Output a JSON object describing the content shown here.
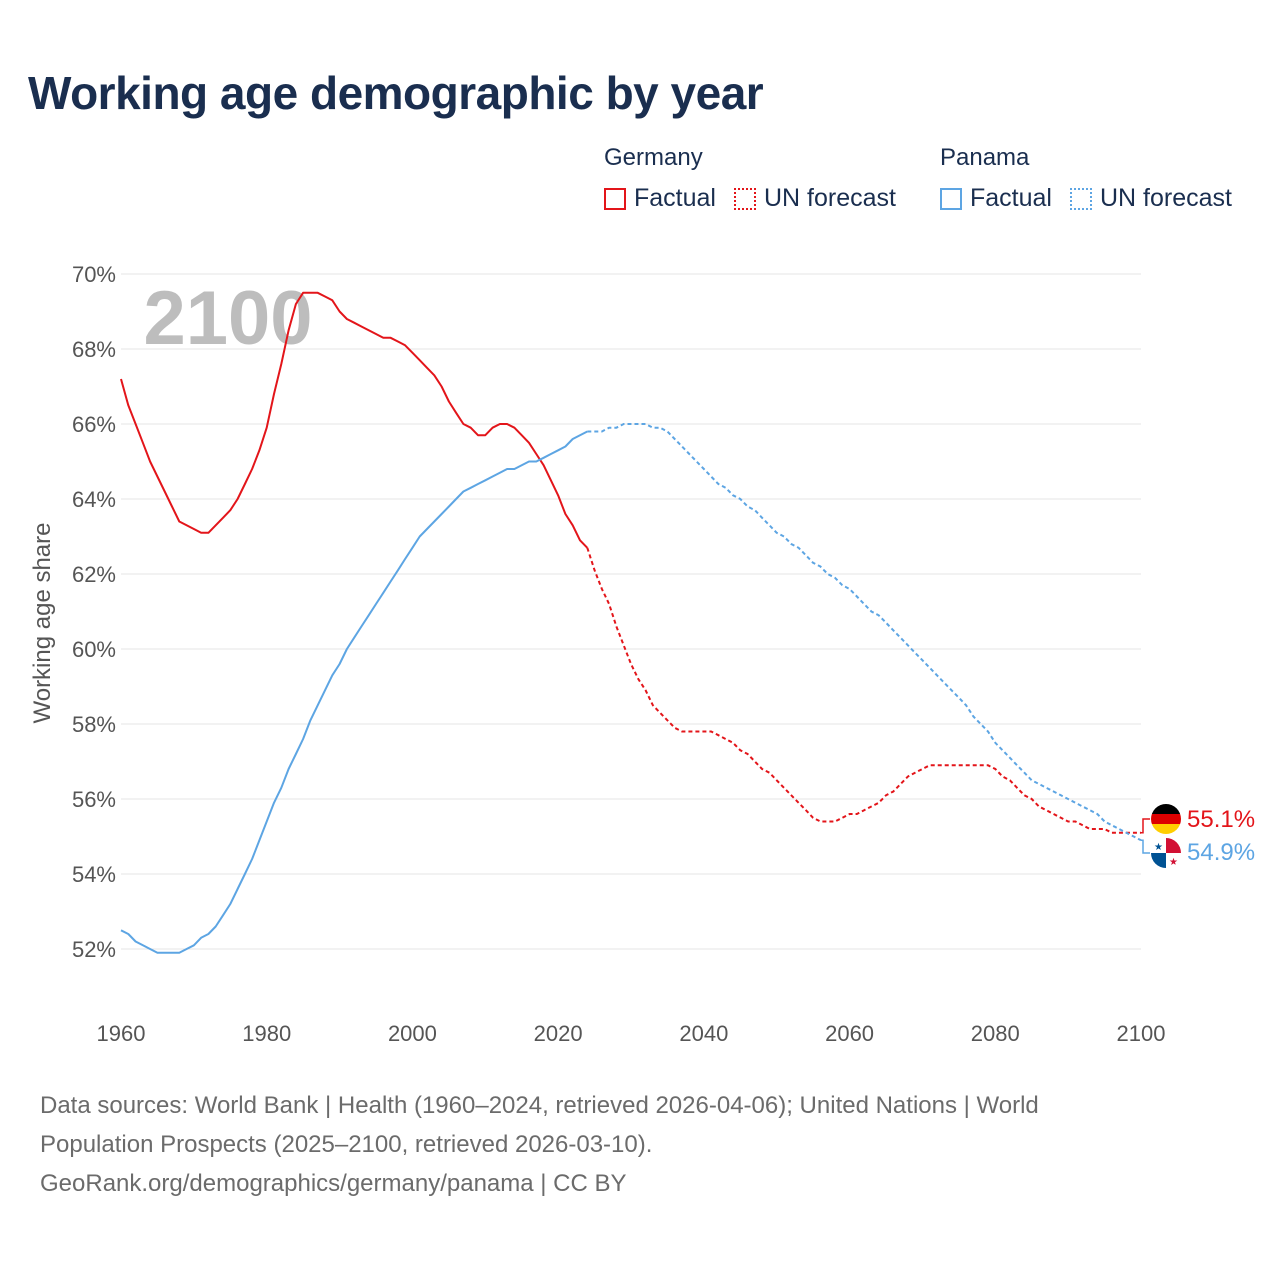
{
  "title": "Working age demographic by year",
  "legend": {
    "groups": [
      {
        "name": "Germany",
        "factual_label": "Factual",
        "forecast_label": "UN forecast",
        "color": "#e3151a"
      },
      {
        "name": "Panama",
        "factual_label": "Factual",
        "forecast_label": "UN forecast",
        "color": "#5da5e3"
      }
    ]
  },
  "footer": {
    "line1": "Data sources: World Bank | Health (1960–2024, retrieved 2026-04-06); United Nations | World",
    "line2": "Population Prospects (2025–2100, retrieved 2026-03-10).",
    "line3": "GeoRank.org/demographics/germany/panama | CC BY"
  },
  "chart_data": {
    "type": "line",
    "title": "Working age demographic by year",
    "xlabel": "",
    "ylabel": "Working age share",
    "xlim": [
      1960,
      2100
    ],
    "ylim": [
      51,
      70
    ],
    "x_ticks": [
      1960,
      1980,
      2000,
      2020,
      2040,
      2060,
      2080,
      2100
    ],
    "x_tick_labels": [
      "1960",
      "1980",
      "2000",
      "2020",
      "2040",
      "2060",
      "2080",
      "2100"
    ],
    "y_ticks": [
      52,
      54,
      56,
      58,
      60,
      62,
      64,
      66,
      68,
      70
    ],
    "y_tick_labels": [
      "52%",
      "54%",
      "56%",
      "58%",
      "60%",
      "62%",
      "64%",
      "66%",
      "68%",
      "70%"
    ],
    "year_watermark": "2100",
    "factual_end": 2024,
    "series": [
      {
        "name": "Germany",
        "color": "#e3151a",
        "end_label": "55.1%",
        "x": [
          1960,
          1961,
          1962,
          1963,
          1964,
          1965,
          1966,
          1967,
          1968,
          1969,
          1970,
          1971,
          1972,
          1973,
          1974,
          1975,
          1976,
          1977,
          1978,
          1979,
          1980,
          1981,
          1982,
          1983,
          1984,
          1985,
          1986,
          1987,
          1988,
          1989,
          1990,
          1991,
          1992,
          1993,
          1994,
          1995,
          1996,
          1997,
          1998,
          1999,
          2000,
          2001,
          2002,
          2003,
          2004,
          2005,
          2006,
          2007,
          2008,
          2009,
          2010,
          2011,
          2012,
          2013,
          2014,
          2015,
          2016,
          2017,
          2018,
          2019,
          2020,
          2021,
          2022,
          2023,
          2024,
          2025,
          2026,
          2027,
          2028,
          2029,
          2030,
          2031,
          2032,
          2033,
          2034,
          2035,
          2036,
          2037,
          2038,
          2039,
          2040,
          2041,
          2042,
          2043,
          2044,
          2045,
          2046,
          2047,
          2048,
          2049,
          2050,
          2051,
          2052,
          2053,
          2054,
          2055,
          2056,
          2057,
          2058,
          2059,
          2060,
          2061,
          2062,
          2063,
          2064,
          2065,
          2066,
          2067,
          2068,
          2069,
          2070,
          2071,
          2072,
          2073,
          2074,
          2075,
          2076,
          2077,
          2078,
          2079,
          2080,
          2081,
          2082,
          2083,
          2084,
          2085,
          2086,
          2087,
          2088,
          2089,
          2090,
          2091,
          2092,
          2093,
          2094,
          2095,
          2096,
          2097,
          2098,
          2099,
          2100
        ],
        "values": [
          67.2,
          66.5,
          66.0,
          65.5,
          65.0,
          64.6,
          64.2,
          63.8,
          63.4,
          63.3,
          63.2,
          63.1,
          63.1,
          63.3,
          63.5,
          63.7,
          64.0,
          64.4,
          64.8,
          65.3,
          65.9,
          66.8,
          67.6,
          68.5,
          69.2,
          69.5,
          69.5,
          69.5,
          69.4,
          69.3,
          69.0,
          68.8,
          68.7,
          68.6,
          68.5,
          68.4,
          68.3,
          68.3,
          68.2,
          68.1,
          67.9,
          67.7,
          67.5,
          67.3,
          67.0,
          66.6,
          66.3,
          66.0,
          65.9,
          65.7,
          65.7,
          65.9,
          66.0,
          66.0,
          65.9,
          65.7,
          65.5,
          65.2,
          64.9,
          64.5,
          64.1,
          63.6,
          63.3,
          62.9,
          62.7,
          62.1,
          61.6,
          61.2,
          60.6,
          60.1,
          59.6,
          59.2,
          58.9,
          58.5,
          58.3,
          58.1,
          57.9,
          57.8,
          57.8,
          57.8,
          57.8,
          57.8,
          57.7,
          57.6,
          57.5,
          57.3,
          57.2,
          57.0,
          56.8,
          56.7,
          56.5,
          56.3,
          56.1,
          55.9,
          55.7,
          55.5,
          55.4,
          55.4,
          55.4,
          55.5,
          55.6,
          55.6,
          55.7,
          55.8,
          55.9,
          56.1,
          56.2,
          56.4,
          56.6,
          56.7,
          56.8,
          56.9,
          56.9,
          56.9,
          56.9,
          56.9,
          56.9,
          56.9,
          56.9,
          56.9,
          56.8,
          56.6,
          56.5,
          56.3,
          56.1,
          56.0,
          55.8,
          55.7,
          55.6,
          55.5,
          55.4,
          55.4,
          55.3,
          55.2,
          55.2,
          55.2,
          55.1,
          55.1,
          55.1,
          55.1,
          55.1
        ]
      },
      {
        "name": "Panama",
        "color": "#5da5e3",
        "end_label": "54.9%",
        "x": [
          1960,
          1961,
          1962,
          1963,
          1964,
          1965,
          1966,
          1967,
          1968,
          1969,
          1970,
          1971,
          1972,
          1973,
          1974,
          1975,
          1976,
          1977,
          1978,
          1979,
          1980,
          1981,
          1982,
          1983,
          1984,
          1985,
          1986,
          1987,
          1988,
          1989,
          1990,
          1991,
          1992,
          1993,
          1994,
          1995,
          1996,
          1997,
          1998,
          1999,
          2000,
          2001,
          2002,
          2003,
          2004,
          2005,
          2006,
          2007,
          2008,
          2009,
          2010,
          2011,
          2012,
          2013,
          2014,
          2015,
          2016,
          2017,
          2018,
          2019,
          2020,
          2021,
          2022,
          2023,
          2024,
          2025,
          2026,
          2027,
          2028,
          2029,
          2030,
          2031,
          2032,
          2033,
          2034,
          2035,
          2036,
          2037,
          2038,
          2039,
          2040,
          2041,
          2042,
          2043,
          2044,
          2045,
          2046,
          2047,
          2048,
          2049,
          2050,
          2051,
          2052,
          2053,
          2054,
          2055,
          2056,
          2057,
          2058,
          2059,
          2060,
          2061,
          2062,
          2063,
          2064,
          2065,
          2066,
          2067,
          2068,
          2069,
          2070,
          2071,
          2072,
          2073,
          2074,
          2075,
          2076,
          2077,
          2078,
          2079,
          2080,
          2081,
          2082,
          2083,
          2084,
          2085,
          2086,
          2087,
          2088,
          2089,
          2090,
          2091,
          2092,
          2093,
          2094,
          2095,
          2096,
          2097,
          2098,
          2099,
          2100
        ],
        "values": [
          52.5,
          52.4,
          52.2,
          52.1,
          52.0,
          51.9,
          51.9,
          51.9,
          51.9,
          52.0,
          52.1,
          52.3,
          52.4,
          52.6,
          52.9,
          53.2,
          53.6,
          54.0,
          54.4,
          54.9,
          55.4,
          55.9,
          56.3,
          56.8,
          57.2,
          57.6,
          58.1,
          58.5,
          58.9,
          59.3,
          59.6,
          60.0,
          60.3,
          60.6,
          60.9,
          61.2,
          61.5,
          61.8,
          62.1,
          62.4,
          62.7,
          63.0,
          63.2,
          63.4,
          63.6,
          63.8,
          64.0,
          64.2,
          64.3,
          64.4,
          64.5,
          64.6,
          64.7,
          64.8,
          64.8,
          64.9,
          65.0,
          65.0,
          65.1,
          65.2,
          65.3,
          65.4,
          65.6,
          65.7,
          65.8,
          65.8,
          65.8,
          65.9,
          65.9,
          66.0,
          66.0,
          66.0,
          66.0,
          65.9,
          65.9,
          65.8,
          65.6,
          65.4,
          65.2,
          65.0,
          64.8,
          64.6,
          64.4,
          64.3,
          64.1,
          64.0,
          63.8,
          63.7,
          63.5,
          63.3,
          63.1,
          63.0,
          62.8,
          62.7,
          62.5,
          62.3,
          62.2,
          62.0,
          61.9,
          61.7,
          61.6,
          61.4,
          61.2,
          61.0,
          60.9,
          60.7,
          60.5,
          60.3,
          60.1,
          59.9,
          59.7,
          59.5,
          59.3,
          59.1,
          58.9,
          58.7,
          58.5,
          58.2,
          58.0,
          57.8,
          57.5,
          57.3,
          57.1,
          56.9,
          56.7,
          56.5,
          56.4,
          56.3,
          56.2,
          56.1,
          56.0,
          55.9,
          55.8,
          55.7,
          55.6,
          55.4,
          55.3,
          55.2,
          55.1,
          55.0,
          54.9
        ]
      }
    ]
  }
}
